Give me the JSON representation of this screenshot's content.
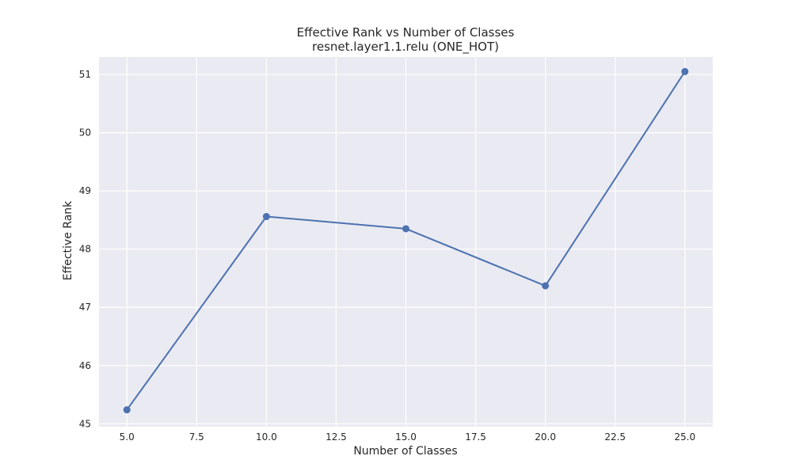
{
  "chart_data": {
    "type": "line",
    "title": "Effective Rank vs Number of Classes",
    "subtitle": "resnet.layer1.1.relu (ONE_HOT)",
    "xlabel": "Number of Classes",
    "ylabel": "Effective Rank",
    "x": [
      5,
      10,
      15,
      20,
      25
    ],
    "series": [
      {
        "values": [
          45.24,
          48.56,
          48.35,
          47.37,
          51.05
        ]
      }
    ],
    "xlim": [
      4.0,
      26.0
    ],
    "ylim": [
      44.95,
      51.3
    ],
    "xticks": [
      5.0,
      7.5,
      10.0,
      12.5,
      15.0,
      17.5,
      20.0,
      22.5,
      25.0
    ],
    "xtick_labels": [
      "5.0",
      "7.5",
      "10.0",
      "12.5",
      "15.0",
      "17.5",
      "20.0",
      "22.5",
      "25.0"
    ],
    "yticks": [
      45,
      46,
      47,
      48,
      49,
      50,
      51
    ],
    "ytick_labels": [
      "45",
      "46",
      "47",
      "48",
      "49",
      "50",
      "51"
    ],
    "grid": true,
    "colors": {
      "background": "#eaeaf2",
      "grid": "#ffffff",
      "line": "#4c72b0",
      "text": "#262626"
    }
  }
}
